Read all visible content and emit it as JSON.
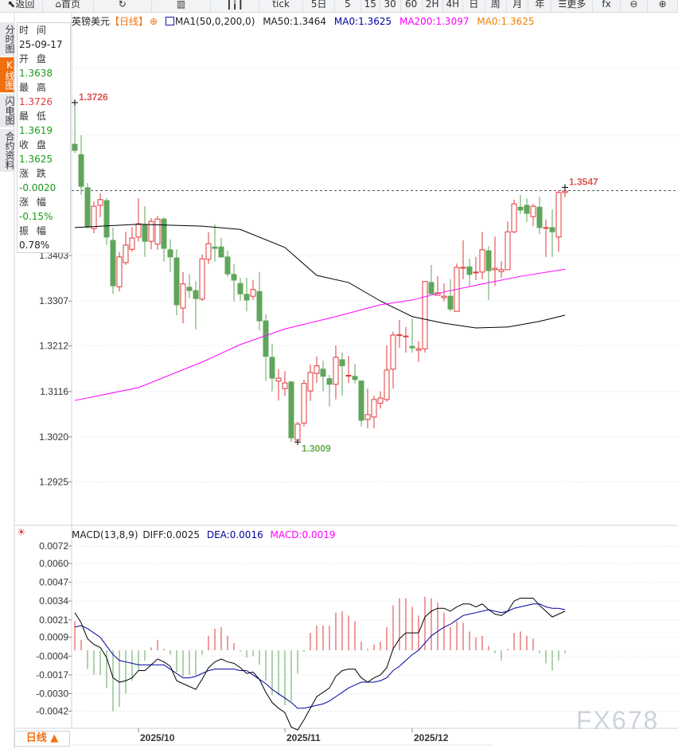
{
  "toolbar": {
    "items": [
      {
        "label": "返回",
        "icon": "back-arrow-icon"
      },
      {
        "label": "首页",
        "icon": "home-icon"
      },
      {
        "label": "",
        "icon": "refresh-icon"
      },
      {
        "label": "",
        "icon": "bar-chart-icon"
      },
      {
        "label": "",
        "icon": "candlestick-icon"
      },
      {
        "label": "tick"
      },
      {
        "label": "5日"
      },
      {
        "label": "5"
      },
      {
        "label": "15"
      },
      {
        "label": "30"
      },
      {
        "label": "60"
      },
      {
        "label": "2H"
      },
      {
        "label": "4H"
      },
      {
        "label": "日"
      },
      {
        "label": "周"
      },
      {
        "label": "月"
      },
      {
        "label": "年"
      },
      {
        "label": "更多",
        "icon": "menu-icon"
      },
      {
        "label": "fx"
      },
      {
        "label": "⊖",
        "icon": "zoom-out-icon"
      },
      {
        "label": "⊕",
        "icon": "zoom-in-icon"
      }
    ]
  },
  "side_tabs": [
    {
      "label": "分时图"
    },
    {
      "label": "K线图",
      "active": true
    },
    {
      "label": "闪电图"
    },
    {
      "label": "合约资料"
    }
  ],
  "info": {
    "time_label": "时 间",
    "time": "25-09-17",
    "open_label": "开 盘",
    "open": "1.3638",
    "high_label": "最 高",
    "high": "1.3726",
    "low_label": "最 低",
    "low": "1.3619",
    "close_label": "收 盘",
    "close": "1.3625",
    "change_label": "涨 跌",
    "change": "-0.0020",
    "pct_label": "涨 幅",
    "pct": "-0.15%",
    "amp_label": "振 幅",
    "amp": "0.78%"
  },
  "legend": {
    "symbol": "英镑美元",
    "period": "【日线】",
    "ma_name": "MA1(50,0,200,0)",
    "ma50": "MA50:1.3464",
    "ma0a": "MA0:1.3625",
    "ma200": "MA200:1.3097",
    "ma0b": "MA0:1.3625"
  },
  "macd_legend": {
    "name": "MACD(13,8,9)",
    "diff": "DIFF:0.0025",
    "dea": "DEA:0.0016",
    "macd": "MACD:0.0019"
  },
  "bottom_tab": {
    "label": "日线 ▲"
  },
  "watermark": "FX678",
  "colors": {
    "up": "#e0393a",
    "down": "#5fa65a",
    "ma50": "#000000",
    "ma200": "#ff00ff",
    "dea": "#0000a0",
    "diff": "#000000",
    "last_price_line": "#1a73e8",
    "period": "#f07010"
  },
  "chart_data": [
    {
      "type": "candlestick",
      "title": "英镑美元",
      "ylim": [
        1.288,
        1.376
      ],
      "y_ticks": [
        "1.3403",
        "1.3307",
        "1.3212",
        "1.3116",
        "1.3020",
        "1.2925"
      ],
      "x_ticks": [
        {
          "bar": 10,
          "label": "2025/10"
        },
        {
          "bar": 33,
          "label": "2025/11"
        },
        {
          "bar": 53,
          "label": "2025/12"
        }
      ],
      "last_price": 1.354,
      "annotations": [
        {
          "bar": 0,
          "value": 1.3726,
          "label": "1.3726"
        },
        {
          "bar": 35,
          "value": 1.3009,
          "label": "1.3009"
        },
        {
          "bar": 77,
          "value": 1.3547,
          "label": "1.3547"
        }
      ],
      "ohlc": [
        [
          1.3638,
          1.3726,
          1.3619,
          1.3625
        ],
        [
          1.3616,
          1.3657,
          1.3531,
          1.3549
        ],
        [
          1.3546,
          1.3556,
          1.346,
          1.3463
        ],
        [
          1.346,
          1.3517,
          1.345,
          1.3507
        ],
        [
          1.3509,
          1.3534,
          1.3484,
          1.3521
        ],
        [
          1.3519,
          1.3524,
          1.3425,
          1.3442
        ],
        [
          1.3435,
          1.3462,
          1.3322,
          1.3339
        ],
        [
          1.3337,
          1.341,
          1.3327,
          1.34
        ],
        [
          1.3388,
          1.3453,
          1.3383,
          1.3425
        ],
        [
          1.3416,
          1.3463,
          1.3411,
          1.344
        ],
        [
          1.3442,
          1.3524,
          1.3433,
          1.347
        ],
        [
          1.3467,
          1.3507,
          1.34,
          1.3433
        ],
        [
          1.3433,
          1.3482,
          1.3416,
          1.3475
        ],
        [
          1.3427,
          1.3487,
          1.3415,
          1.348
        ],
        [
          1.348,
          1.3484,
          1.339,
          1.3418
        ],
        [
          1.3415,
          1.3437,
          1.3368,
          1.34
        ],
        [
          1.3398,
          1.3416,
          1.3277,
          1.3299
        ],
        [
          1.3292,
          1.3368,
          1.326,
          1.3343
        ],
        [
          1.3336,
          1.3364,
          1.3312,
          1.3329
        ],
        [
          1.3329,
          1.3349,
          1.3247,
          1.3312
        ],
        [
          1.3311,
          1.3405,
          1.3307,
          1.3396
        ],
        [
          1.3395,
          1.3452,
          1.3385,
          1.3428
        ],
        [
          1.3421,
          1.3469,
          1.339,
          1.3418
        ],
        [
          1.3421,
          1.344,
          1.3398,
          1.34
        ],
        [
          1.34,
          1.3413,
          1.3358,
          1.3364
        ],
        [
          1.3363,
          1.3385,
          1.3306,
          1.3351
        ],
        [
          1.3344,
          1.3356,
          1.3307,
          1.3322
        ],
        [
          1.3321,
          1.3356,
          1.3285,
          1.3309
        ],
        [
          1.3317,
          1.3351,
          1.3309,
          1.3331
        ],
        [
          1.3327,
          1.3368,
          1.3245,
          1.3265
        ],
        [
          1.3265,
          1.3279,
          1.3138,
          1.319
        ],
        [
          1.3188,
          1.3217,
          1.3116,
          1.3144
        ],
        [
          1.3138,
          1.3163,
          1.3097,
          1.3144
        ],
        [
          1.3122,
          1.3159,
          1.3107,
          1.3134
        ],
        [
          1.3136,
          1.3138,
          1.3009,
          1.3018
        ],
        [
          1.3013,
          1.3052,
          1.3009,
          1.3047
        ],
        [
          1.3049,
          1.3141,
          1.3042,
          1.3133
        ],
        [
          1.3117,
          1.3173,
          1.3096,
          1.3156
        ],
        [
          1.3154,
          1.319,
          1.3134,
          1.317
        ],
        [
          1.3163,
          1.3181,
          1.3116,
          1.3148
        ],
        [
          1.3143,
          1.3151,
          1.3084,
          1.3131
        ],
        [
          1.3131,
          1.3213,
          1.3099,
          1.3188
        ],
        [
          1.3183,
          1.3198,
          1.3107,
          1.317
        ],
        [
          1.3149,
          1.3191,
          1.3134,
          1.315
        ],
        [
          1.3148,
          1.3174,
          1.3133,
          1.3141
        ],
        [
          1.3138,
          1.3138,
          1.3042,
          1.3055
        ],
        [
          1.3057,
          1.3122,
          1.3038,
          1.3067
        ],
        [
          1.3062,
          1.3107,
          1.3038,
          1.3099
        ],
        [
          1.3091,
          1.3116,
          1.308,
          1.3102
        ],
        [
          1.3099,
          1.3213,
          1.3094,
          1.3161
        ],
        [
          1.3163,
          1.3242,
          1.3122,
          1.3235
        ],
        [
          1.3234,
          1.3267,
          1.3208,
          1.3236
        ],
        [
          1.3232,
          1.3252,
          1.3198,
          1.3233
        ],
        [
          1.3211,
          1.327,
          1.3198,
          1.3208
        ],
        [
          1.3203,
          1.3222,
          1.3178,
          1.3206
        ],
        [
          1.3206,
          1.3349,
          1.3198,
          1.3348
        ],
        [
          1.3346,
          1.3383,
          1.3322,
          1.3322
        ],
        [
          1.3319,
          1.3359,
          1.3319,
          1.3324
        ],
        [
          1.3314,
          1.3344,
          1.3306,
          1.3317
        ],
        [
          1.3317,
          1.3353,
          1.3285,
          1.329
        ],
        [
          1.3285,
          1.3386,
          1.3285,
          1.3378
        ],
        [
          1.3377,
          1.3435,
          1.3353,
          1.3378
        ],
        [
          1.3379,
          1.3396,
          1.3339,
          1.3363
        ],
        [
          1.3367,
          1.34,
          1.3351,
          1.3368
        ],
        [
          1.3368,
          1.3453,
          1.3353,
          1.3415
        ],
        [
          1.3413,
          1.3423,
          1.3309,
          1.3371
        ],
        [
          1.3373,
          1.3443,
          1.3339,
          1.3376
        ],
        [
          1.3369,
          1.3391,
          1.3356,
          1.3373
        ],
        [
          1.3373,
          1.3475,
          1.3373,
          1.3453
        ],
        [
          1.3453,
          1.3521,
          1.345,
          1.3512
        ],
        [
          1.3505,
          1.3531,
          1.349,
          1.3499
        ],
        [
          1.3509,
          1.3524,
          1.3474,
          1.3492
        ],
        [
          1.3485,
          1.3512,
          1.3465,
          1.3507
        ],
        [
          1.3505,
          1.3527,
          1.3448,
          1.3462
        ],
        [
          1.3461,
          1.3479,
          1.34,
          1.3462
        ],
        [
          1.3462,
          1.35,
          1.34,
          1.3453
        ],
        [
          1.3442,
          1.354,
          1.3411,
          1.3536
        ],
        [
          1.3536,
          1.3547,
          1.3526,
          1.3539
        ]
      ],
      "ma50": [
        [
          0,
          1.3462
        ],
        [
          10,
          1.3469
        ],
        [
          20,
          1.3465
        ],
        [
          26,
          1.3458
        ],
        [
          33,
          1.342
        ],
        [
          38,
          1.3361
        ],
        [
          43,
          1.3346
        ],
        [
          48,
          1.3307
        ],
        [
          53,
          1.3274
        ],
        [
          58,
          1.326
        ],
        [
          63,
          1.325
        ],
        [
          68,
          1.3252
        ],
        [
          73,
          1.3264
        ],
        [
          77,
          1.3277
        ]
      ],
      "ma200": [
        [
          0,
          1.3097
        ],
        [
          10,
          1.3124
        ],
        [
          20,
          1.3178
        ],
        [
          26,
          1.3215
        ],
        [
          33,
          1.3248
        ],
        [
          41,
          1.3274
        ],
        [
          48,
          1.3299
        ],
        [
          53,
          1.3309
        ],
        [
          58,
          1.3326
        ],
        [
          64,
          1.3343
        ],
        [
          70,
          1.3359
        ],
        [
          77,
          1.3374
        ]
      ]
    },
    {
      "type": "macd",
      "ylim": [
        -0.0056,
        0.0078
      ],
      "y_ticks": [
        "0.0072",
        "0.0060",
        "0.0047",
        "0.0034",
        "0.0021",
        "0.0009",
        "-0.0004",
        "-0.0017",
        "-0.0030",
        "-0.0042"
      ],
      "macd": [
        0.002,
        0.0007,
        -0.0013,
        -0.0017,
        -0.0017,
        -0.0026,
        -0.0042,
        -0.0039,
        -0.003,
        -0.0021,
        -0.0014,
        -0.0007,
        0.0002,
        0.0007,
        0.0001,
        -0.0003,
        -0.0015,
        -0.0018,
        -0.0017,
        -0.0017,
        -0.0003,
        0.001,
        0.0015,
        0.0016,
        0.001,
        0.0005,
        -0.0001,
        -0.0005,
        -0.0004,
        -0.001,
        -0.0021,
        -0.0031,
        -0.0031,
        -0.0038,
        -0.0035,
        -0.0016,
        -0.0001,
        0.0012,
        0.0017,
        0.0017,
        0.0017,
        0.0026,
        0.0027,
        0.0024,
        0.002,
        0.0006,
        0.0001,
        0.0004,
        0.0006,
        0.0016,
        0.0031,
        0.0036,
        0.0036,
        0.003,
        0.0024,
        0.0037,
        0.0036,
        0.0033,
        0.0026,
        0.0016,
        0.002,
        0.0019,
        0.0013,
        0.0009,
        0.001,
        0.0003,
        -0.0002,
        -0.0007,
        0.0001,
        0.0012,
        0.0013,
        0.001,
        0.0008,
        -0.0002,
        -0.0009,
        -0.0014,
        -0.0007,
        -0.0002
      ],
      "diff": [
        0.0026,
        0.0019,
        0.0008,
        0.0004,
        0.0002,
        -0.0005,
        -0.0019,
        -0.0022,
        -0.0021,
        -0.0019,
        -0.0014,
        -0.0014,
        -0.001,
        -0.0006,
        -0.0008,
        -0.0011,
        -0.0021,
        -0.0023,
        -0.0025,
        -0.0027,
        -0.002,
        -0.0012,
        -0.0008,
        -0.0006,
        -0.0008,
        -0.0009,
        -0.0012,
        -0.0016,
        -0.0015,
        -0.002,
        -0.0029,
        -0.0036,
        -0.004,
        -0.0043,
        -0.0053,
        -0.0055,
        -0.0048,
        -0.004,
        -0.0032,
        -0.0029,
        -0.0026,
        -0.0018,
        -0.0014,
        -0.0013,
        -0.0013,
        -0.0019,
        -0.0022,
        -0.0019,
        -0.0017,
        -0.0012,
        0.0001,
        0.0008,
        0.0012,
        0.0012,
        0.0012,
        0.0023,
        0.0027,
        0.0029,
        0.0029,
        0.0027,
        0.003,
        0.0032,
        0.0032,
        0.003,
        0.0032,
        0.0028,
        0.0025,
        0.0024,
        0.0027,
        0.0034,
        0.0036,
        0.0036,
        0.0036,
        0.0031,
        0.0027,
        0.0023,
        0.0025,
        0.0027
      ],
      "dea": [
        0.0016,
        0.0017,
        0.0015,
        0.0012,
        0.0009,
        0.0003,
        -0.0003,
        -0.0007,
        -0.0008,
        -0.0009,
        -0.001,
        -0.001,
        -0.001,
        -0.001,
        -0.001,
        -0.0013,
        -0.0016,
        -0.0019,
        -0.0019,
        -0.0018,
        -0.0016,
        -0.0014,
        -0.0013,
        -0.0013,
        -0.0013,
        -0.0013,
        -0.0014,
        -0.0014,
        -0.0017,
        -0.002,
        -0.0023,
        -0.0027,
        -0.003,
        -0.0033,
        -0.0036,
        -0.004,
        -0.004,
        -0.0039,
        -0.0038,
        -0.0037,
        -0.0035,
        -0.0032,
        -0.0029,
        -0.0026,
        -0.0024,
        -0.0022,
        -0.0022,
        -0.0022,
        -0.0021,
        -0.0019,
        -0.0014,
        -0.0011,
        -0.0007,
        -0.0003,
        0.0,
        0.0005,
        0.001,
        0.0013,
        0.0016,
        0.0018,
        0.0021,
        0.0024,
        0.0025,
        0.0026,
        0.0027,
        0.0028,
        0.0027,
        0.0026,
        0.0027,
        0.0029,
        0.003,
        0.0031,
        0.0032,
        0.0032,
        0.003,
        0.0029,
        0.0029,
        0.0028
      ]
    }
  ]
}
